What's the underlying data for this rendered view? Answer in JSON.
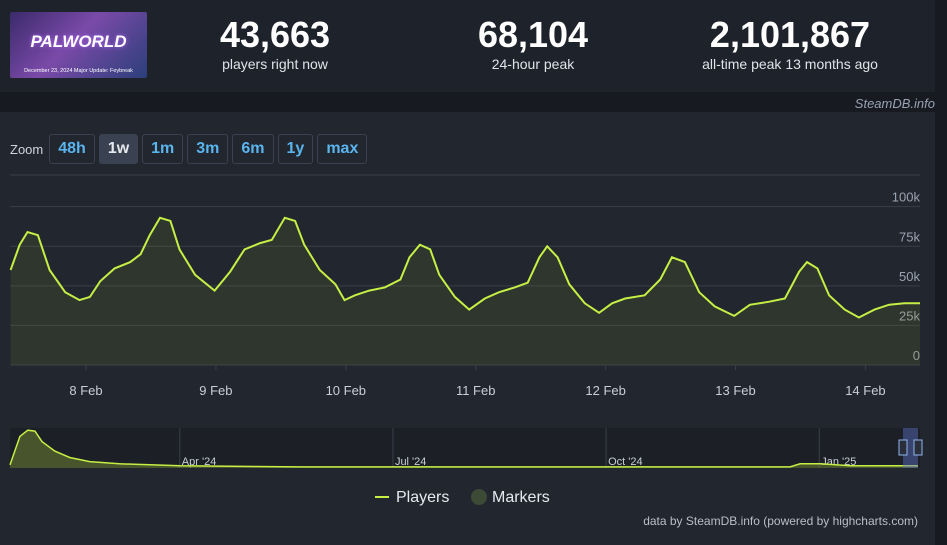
{
  "header": {
    "game": "PALWORLD",
    "banner_caption": "December 23, 2024 Major Update: Feybreak",
    "stats": [
      {
        "value": "43,663",
        "label": "players right now"
      },
      {
        "value": "68,104",
        "label": "24-hour peak"
      },
      {
        "value": "2,101,867",
        "label": "all-time peak 13 months ago"
      }
    ],
    "source": "SteamDB.info"
  },
  "zoom": {
    "label": "Zoom",
    "options": [
      "48h",
      "1w",
      "1m",
      "3m",
      "6m",
      "1y",
      "max"
    ],
    "selected": "1w"
  },
  "legend": {
    "players": "Players",
    "markers": "Markers"
  },
  "credits": "data by SteamDB.info (powered by highcharts.com)",
  "chart_data": [
    {
      "type": "line",
      "series": [
        {
          "name": "Players",
          "color": "#c6ef45",
          "x": [
            0.42,
            0.49,
            0.55,
            0.63,
            0.72,
            0.84,
            0.95,
            1.03,
            1.11,
            1.22,
            1.34,
            1.42,
            1.49,
            1.57,
            1.65,
            1.72,
            1.84,
            1.99,
            2.11,
            2.22,
            2.34,
            2.43,
            2.53,
            2.61,
            2.68,
            2.8,
            2.92,
            2.99,
            3.07,
            3.18,
            3.3,
            3.42,
            3.49,
            3.57,
            3.65,
            3.72,
            3.84,
            3.95,
            4.07,
            4.18,
            4.3,
            4.4,
            4.49,
            4.55,
            4.63,
            4.72,
            4.84,
            4.95,
            5.05,
            5.15,
            5.3,
            5.42,
            5.51,
            5.61,
            5.72,
            5.84,
            5.99,
            6.11,
            6.26,
            6.38,
            6.49,
            6.55,
            6.63,
            6.72,
            6.84,
            6.95,
            7.07,
            7.18,
            7.3,
            7.42
          ],
          "values": [
            60000,
            76000,
            84000,
            82000,
            60000,
            46000,
            41000,
            43000,
            53000,
            61000,
            65000,
            70000,
            82000,
            93000,
            91000,
            73000,
            57000,
            47000,
            59000,
            73000,
            77000,
            79000,
            93000,
            91000,
            76000,
            60000,
            51000,
            41000,
            44000,
            47000,
            49000,
            54000,
            68000,
            76000,
            73000,
            57000,
            43000,
            35000,
            42000,
            46000,
            49000,
            52000,
            68000,
            75000,
            68000,
            51000,
            39000,
            33000,
            39000,
            42000,
            44000,
            54000,
            68000,
            65000,
            46000,
            37000,
            31000,
            38000,
            40000,
            42000,
            59000,
            65000,
            61000,
            44000,
            35000,
            30000,
            35000,
            38000,
            39000,
            39000
          ]
        }
      ],
      "xlim": [
        0.415,
        7.42
      ],
      "xticks": [
        {
          "value": 1,
          "label": "8 Feb"
        },
        {
          "value": 2,
          "label": "9 Feb"
        },
        {
          "value": 3,
          "label": "10 Feb"
        },
        {
          "value": 4,
          "label": "11 Feb"
        },
        {
          "value": 5,
          "label": "12 Feb"
        },
        {
          "value": 6,
          "label": "13 Feb"
        },
        {
          "value": 7,
          "label": "14 Feb"
        }
      ],
      "ylim": [
        0,
        120000
      ],
      "yticks": [
        0,
        {
          "value": 25000,
          "label": "25k"
        },
        {
          "value": 50000,
          "label": "50k"
        },
        {
          "value": 75000,
          "label": "75k"
        },
        {
          "value": 100000,
          "label": "100k"
        }
      ],
      "grid": true
    },
    {
      "type": "area",
      "series": [
        {
          "name": "Players",
          "color": "#c6ef45",
          "x": [
            0.61,
            0.75,
            0.86,
            0.96,
            1.06,
            1.24,
            1.45,
            1.73,
            2.15,
            3.0,
            4.69,
            7.51,
            11.59,
            11.73,
            12.01,
            12.44,
            13.39
          ],
          "values": [
            170000,
            1740000,
            2080000,
            2030000,
            1450000,
            930000,
            580000,
            350000,
            230000,
            120000,
            60000,
            60000,
            60000,
            230000,
            230000,
            120000,
            120000
          ]
        }
      ],
      "xlim": [
        0.61,
        13.39
      ],
      "xticks": [
        {
          "value": 3,
          "label": "Apr '24"
        },
        {
          "value": 6,
          "label": "Jul '24"
        },
        {
          "value": 9,
          "label": "Oct '24"
        },
        {
          "value": 12,
          "label": "Jan '25"
        }
      ],
      "ylim": [
        0,
        2200000
      ]
    }
  ]
}
